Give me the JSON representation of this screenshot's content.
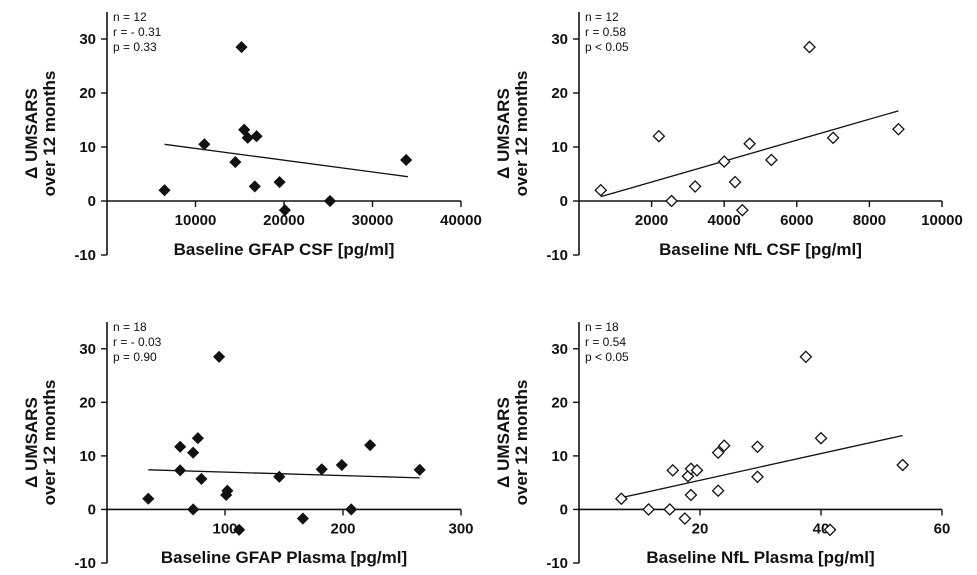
{
  "chart_data": [
    {
      "type": "scatter",
      "marker": "filled-diamond",
      "xlabel": "Baseline GFAP CSF [pg/ml]",
      "ylabel": [
        "Δ UMSARS",
        "over 12 months"
      ],
      "xlim": [
        0,
        40000
      ],
      "ylim": [
        -10,
        35
      ],
      "xticks": [
        {
          "v": 10000,
          "t": "10000"
        },
        {
          "v": 20000,
          "t": "20000"
        },
        {
          "v": 30000,
          "t": "30000"
        },
        {
          "v": 40000,
          "t": "40000"
        }
      ],
      "yticks": [
        {
          "v": -10,
          "t": "-10"
        },
        {
          "v": 0,
          "t": "0"
        },
        {
          "v": 10,
          "t": "10"
        },
        {
          "v": 20,
          "t": "20"
        },
        {
          "v": 30,
          "t": "30"
        }
      ],
      "stats": [
        "n = 12",
        "r = - 0.31",
        "p = 0.33"
      ],
      "points": [
        [
          6500,
          2
        ],
        [
          11000,
          10.5
        ],
        [
          14500,
          7.2
        ],
        [
          15200,
          28.5
        ],
        [
          15500,
          13.2
        ],
        [
          15900,
          11.7
        ],
        [
          16700,
          2.7
        ],
        [
          16900,
          12
        ],
        [
          19500,
          3.5
        ],
        [
          20100,
          -1.7
        ],
        [
          25200,
          0
        ],
        [
          33800,
          7.6
        ]
      ],
      "fit": [
        [
          6500,
          10.5
        ],
        [
          34000,
          4.5
        ]
      ]
    },
    {
      "type": "scatter",
      "marker": "open-diamond",
      "xlabel": "Baseline NfL CSF [pg/ml]",
      "ylabel": [
        "Δ UMSARS",
        "over 12 months"
      ],
      "xlim": [
        0,
        10000
      ],
      "ylim": [
        -10,
        35
      ],
      "xticks": [
        {
          "v": 2000,
          "t": "2000"
        },
        {
          "v": 4000,
          "t": "4000"
        },
        {
          "v": 6000,
          "t": "6000"
        },
        {
          "v": 8000,
          "t": "8000"
        },
        {
          "v": 10000,
          "t": "10000"
        }
      ],
      "yticks": [
        {
          "v": -10,
          "t": "-10"
        },
        {
          "v": 0,
          "t": "0"
        },
        {
          "v": 10,
          "t": "10"
        },
        {
          "v": 20,
          "t": "20"
        },
        {
          "v": 30,
          "t": "30"
        }
      ],
      "stats": [
        "n = 12",
        "r = 0.58",
        "p < 0.05"
      ],
      "points": [
        [
          600,
          2
        ],
        [
          2200,
          12
        ],
        [
          2550,
          0
        ],
        [
          3200,
          2.7
        ],
        [
          4000,
          7.3
        ],
        [
          4300,
          3.5
        ],
        [
          4500,
          -1.7
        ],
        [
          4700,
          10.6
        ],
        [
          5300,
          7.6
        ],
        [
          6350,
          28.5
        ],
        [
          7000,
          11.7
        ],
        [
          8800,
          13.3
        ]
      ],
      "fit": [
        [
          600,
          0.8
        ],
        [
          8800,
          16.7
        ]
      ]
    },
    {
      "type": "scatter",
      "marker": "filled-diamond",
      "xlabel": "Baseline GFAP Plasma [pg/ml]",
      "ylabel": [
        "Δ UMSARS",
        "over 12 months"
      ],
      "xlim": [
        0,
        300
      ],
      "ylim": [
        -10,
        35
      ],
      "xticks": [
        {
          "v": 100,
          "t": "100"
        },
        {
          "v": 200,
          "t": "200"
        },
        {
          "v": 300,
          "t": "300"
        }
      ],
      "yticks": [
        {
          "v": -10,
          "t": "-10"
        },
        {
          "v": 0,
          "t": "0"
        },
        {
          "v": 10,
          "t": "10"
        },
        {
          "v": 20,
          "t": "20"
        },
        {
          "v": 30,
          "t": "30"
        }
      ],
      "stats": [
        "n = 18",
        "r = - 0.03",
        "p = 0.90"
      ],
      "points": [
        [
          35,
          2
        ],
        [
          62,
          11.7
        ],
        [
          62,
          7.3
        ],
        [
          73,
          10.6
        ],
        [
          73,
          0
        ],
        [
          77,
          13.3
        ],
        [
          80,
          5.7
        ],
        [
          95,
          28.5
        ],
        [
          102,
          3.5
        ],
        [
          101,
          2.7
        ],
        [
          112,
          -3.8
        ],
        [
          146,
          6.1
        ],
        [
          166,
          -1.7
        ],
        [
          182,
          7.5
        ],
        [
          199,
          8.3
        ],
        [
          207,
          0
        ],
        [
          223,
          12
        ],
        [
          265,
          7.4
        ]
      ],
      "fit": [
        [
          35,
          7.4
        ],
        [
          265,
          5.9
        ]
      ]
    },
    {
      "type": "scatter",
      "marker": "open-diamond",
      "xlabel": "Baseline NfL Plasma [pg/ml]",
      "ylabel": [
        "Δ UMSARS",
        "over 12 months"
      ],
      "xlim": [
        0,
        60
      ],
      "ylim": [
        -10,
        35
      ],
      "xticks": [
        {
          "v": 20,
          "t": "20"
        },
        {
          "v": 40,
          "t": "40"
        },
        {
          "v": 60,
          "t": "60"
        }
      ],
      "yticks": [
        {
          "v": -10,
          "t": "-10"
        },
        {
          "v": 0,
          "t": "0"
        },
        {
          "v": 10,
          "t": "10"
        },
        {
          "v": 20,
          "t": "20"
        },
        {
          "v": 30,
          "t": "30"
        }
      ],
      "stats": [
        "n = 18",
        "r = 0.54",
        "p < 0.05"
      ],
      "points": [
        [
          7,
          2
        ],
        [
          11.5,
          0
        ],
        [
          15,
          0
        ],
        [
          15.5,
          7.3
        ],
        [
          17.5,
          -1.7
        ],
        [
          18,
          6.2
        ],
        [
          18.5,
          7.6
        ],
        [
          18.5,
          2.7
        ],
        [
          19.5,
          7.3
        ],
        [
          23,
          3.5
        ],
        [
          23,
          10.6
        ],
        [
          24,
          11.9
        ],
        [
          29.5,
          11.7
        ],
        [
          29.5,
          6.1
        ],
        [
          37.5,
          28.5
        ],
        [
          40,
          13.3
        ],
        [
          41.5,
          -3.8
        ],
        [
          53.5,
          8.3
        ]
      ],
      "fit": [
        [
          7,
          2.2
        ],
        [
          53.5,
          13.8
        ]
      ]
    }
  ]
}
